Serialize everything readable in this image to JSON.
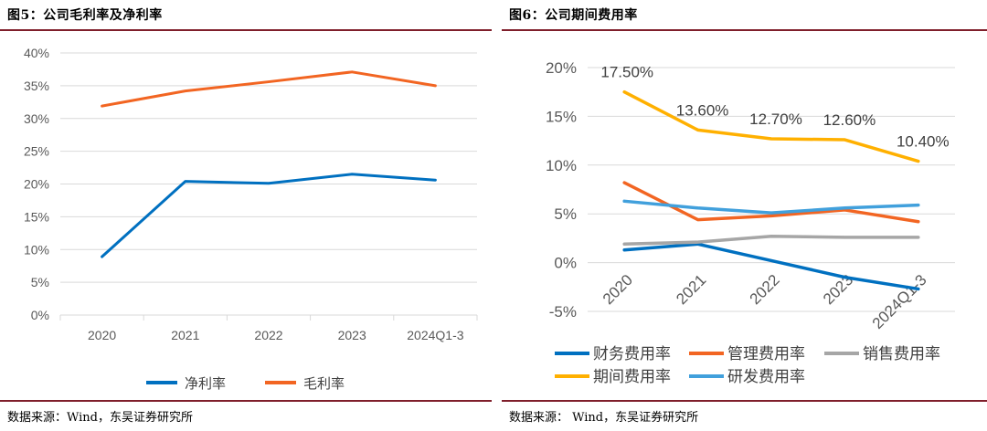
{
  "left": {
    "title": "图5：公司毛利率及净利率",
    "source": "数据来源：Wind，东吴证券研究所"
  },
  "right": {
    "title": "图6：公司期间费用率",
    "source": "数据来源： Wind，东吴证券研究所"
  },
  "chart_data": [
    {
      "type": "line",
      "categories": [
        "2020",
        "2021",
        "2022",
        "2023",
        "2024Q1-3"
      ],
      "ylim": [
        0,
        40
      ],
      "yticks": [
        "0%",
        "5%",
        "10%",
        "15%",
        "20%",
        "25%",
        "30%",
        "35%",
        "40%"
      ],
      "ytick_values": [
        0,
        5,
        10,
        15,
        20,
        25,
        30,
        35,
        40
      ],
      "grid": true,
      "legend_position": "bottom",
      "series": [
        {
          "name": "净利率",
          "color": "#0070c0",
          "values": [
            8.9,
            20.4,
            20.1,
            21.5,
            20.6
          ]
        },
        {
          "name": "毛利率",
          "color": "#f26522",
          "values": [
            31.9,
            34.2,
            35.6,
            37.1,
            35.0
          ]
        }
      ]
    },
    {
      "type": "line",
      "categories": [
        "2020",
        "2021",
        "2022",
        "2023",
        "2024Q1-3"
      ],
      "ylim": [
        -5,
        20
      ],
      "yticks": [
        "-5%",
        "0%",
        "5%",
        "10%",
        "15%",
        "20%"
      ],
      "ytick_values": [
        -5,
        0,
        5,
        10,
        15,
        20
      ],
      "grid": true,
      "legend_position": "bottom",
      "series": [
        {
          "name": "财务费用率",
          "color": "#0070c0",
          "values": [
            1.3,
            1.9,
            0.2,
            -1.5,
            -2.7
          ]
        },
        {
          "name": "管理费用率",
          "color": "#f26522",
          "values": [
            8.2,
            4.4,
            4.8,
            5.4,
            4.2
          ]
        },
        {
          "name": "销售费用率",
          "color": "#a6a6a6",
          "values": [
            1.9,
            2.1,
            2.7,
            2.6,
            2.6
          ]
        },
        {
          "name": "期间费用率",
          "color": "#ffb000",
          "values": [
            17.5,
            13.6,
            12.7,
            12.6,
            10.4
          ],
          "labels": [
            "17.50%",
            "13.60%",
            "12.70%",
            "12.60%",
            "10.40%"
          ]
        },
        {
          "name": "研发费用率",
          "color": "#41a0dc",
          "values": [
            6.3,
            5.6,
            5.1,
            5.6,
            5.9
          ]
        }
      ]
    }
  ]
}
